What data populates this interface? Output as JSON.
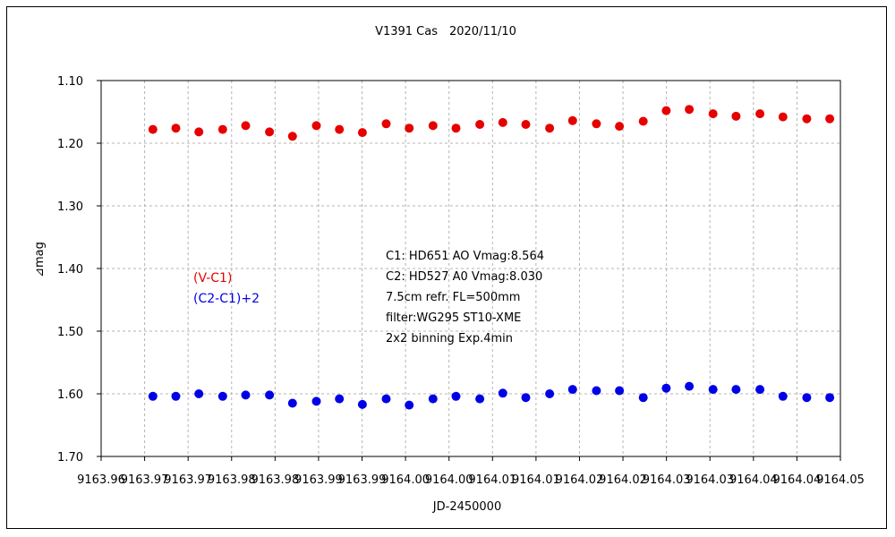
{
  "chart_data": {
    "type": "scatter",
    "title": "V1391 Cas　2020/11/10",
    "xlabel": "JD-2450000",
    "ylabel": "⊿mag",
    "xlim": [
      9163.96,
      9164.05
    ],
    "ylim": [
      1.1,
      1.7
    ],
    "y_inverted": true,
    "grid": true,
    "x_ticks": [
      "9163.96",
      "9163.97",
      "9163.97",
      "9163.98",
      "9163.98",
      "9163.99",
      "9163.99",
      "9164.00",
      "9164.00",
      "9164.01",
      "9164.01",
      "9164.02",
      "9164.02",
      "9164.03",
      "9164.03",
      "9164.04",
      "9164.04",
      "9164.05"
    ],
    "y_ticks": [
      "1.10",
      "1.20",
      "1.30",
      "1.40",
      "1.50",
      "1.60",
      "1.70"
    ],
    "legend_placement": "center-left",
    "series": [
      {
        "name": "(V-C1)",
        "color": "#e60000",
        "x": [
          9163.9663,
          9163.9691,
          9163.9719,
          9163.9748,
          9163.9776,
          9163.9805,
          9163.9833,
          9163.9862,
          9163.989,
          9163.9918,
          9163.9947,
          9163.9975,
          9164.0004,
          9164.0032,
          9164.0061,
          9164.0089,
          9164.0117,
          9164.0146,
          9164.0174,
          9164.0203,
          9164.0231,
          9164.026,
          9164.0288,
          9164.0316,
          9164.0345,
          9164.0373,
          9164.0402,
          9164.043,
          9164.0459,
          9164.0487
        ],
        "y": [
          1.178,
          1.176,
          1.182,
          1.178,
          1.172,
          1.182,
          1.189,
          1.172,
          1.178,
          1.183,
          1.169,
          1.176,
          1.172,
          1.176,
          1.17,
          1.167,
          1.17,
          1.176,
          1.164,
          1.169,
          1.173,
          1.165,
          1.148,
          1.146,
          1.153,
          1.157,
          1.153,
          1.158,
          1.161,
          1.161
        ]
      },
      {
        "name": "(C2-C1)+2",
        "color": "#0000e6",
        "x": [
          9163.9663,
          9163.9691,
          9163.9719,
          9163.9748,
          9163.9776,
          9163.9805,
          9163.9833,
          9163.9862,
          9163.989,
          9163.9918,
          9163.9947,
          9163.9975,
          9164.0004,
          9164.0032,
          9164.0061,
          9164.0089,
          9164.0117,
          9164.0146,
          9164.0174,
          9164.0203,
          9164.0231,
          9164.026,
          9164.0288,
          9164.0316,
          9164.0345,
          9164.0373,
          9164.0402,
          9164.043,
          9164.0459,
          9164.0487
        ],
        "y": [
          1.604,
          1.604,
          1.6,
          1.604,
          1.602,
          1.602,
          1.615,
          1.612,
          1.608,
          1.617,
          1.608,
          1.618,
          1.608,
          1.604,
          1.608,
          1.599,
          1.606,
          1.6,
          1.593,
          1.595,
          1.595,
          1.606,
          1.591,
          1.588,
          1.593,
          1.593,
          1.593,
          1.604,
          1.606,
          1.606
        ]
      }
    ],
    "annotations": [
      "C1: HD651 AO Vmag:8.564",
      "C2: HD527 A0  Vmag:8.030",
      "7.5cm refr. FL=500mm",
      "filter:WG295  ST10-XME",
      "2x2 binning Exp.4min"
    ]
  }
}
